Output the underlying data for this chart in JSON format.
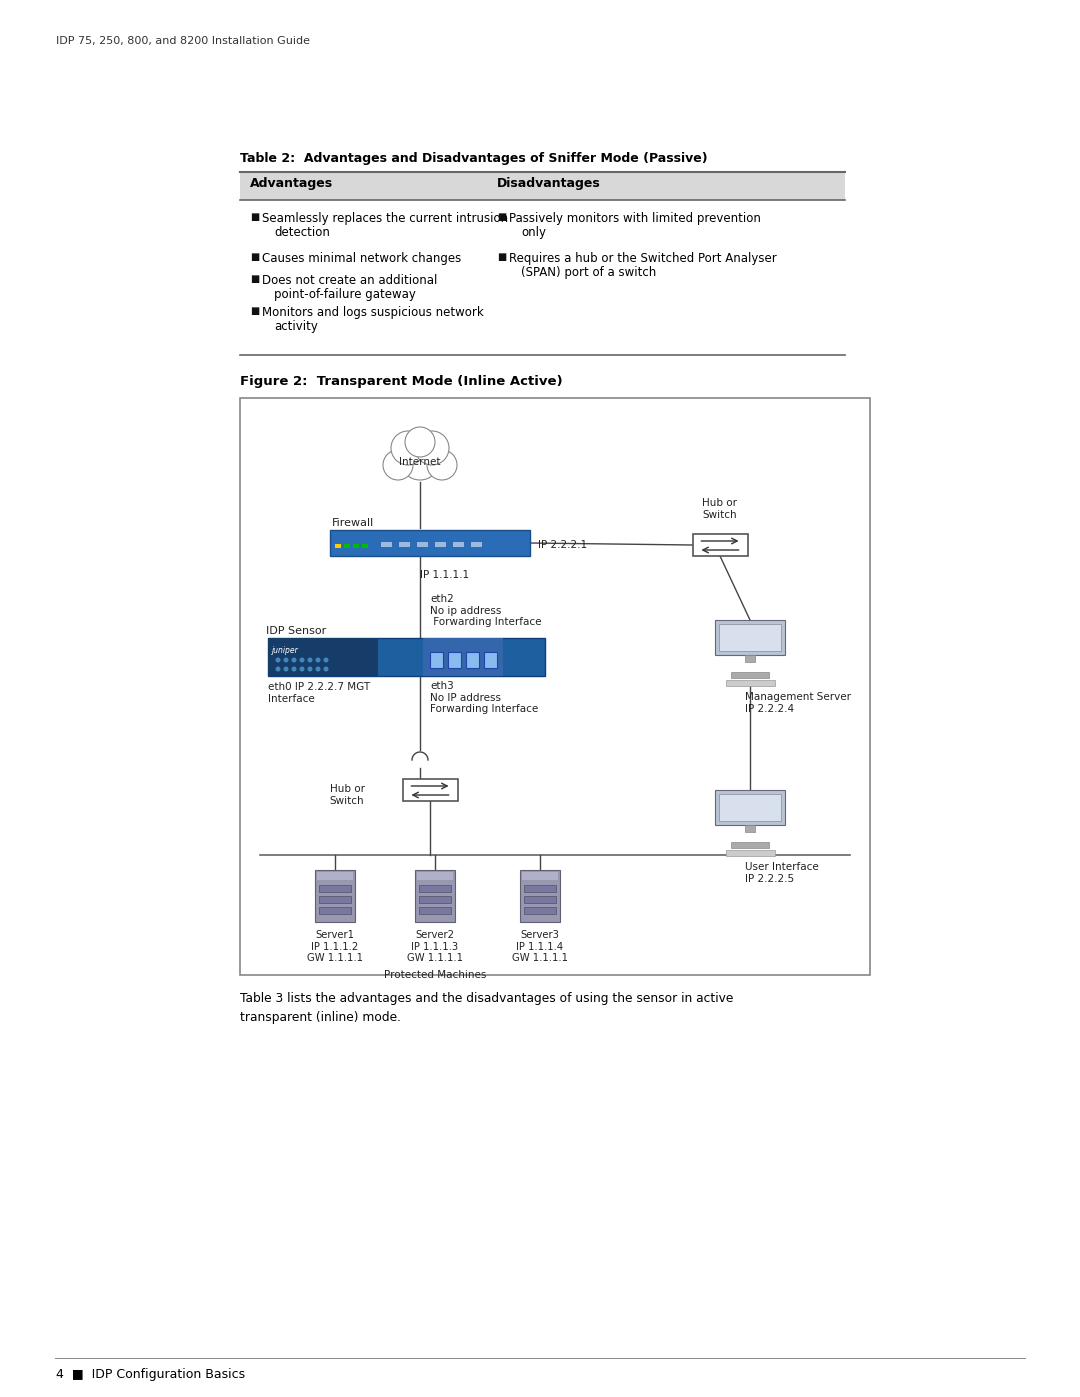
{
  "page_header": "IDP 75, 250, 800, and 8200 Installation Guide",
  "page_footer_num": "4",
  "page_footer_text": "IDP Configuration Basics",
  "table_title": "Table 2:  Advantages and Disadvantages of Sniffer Mode (Passive)",
  "col1_header": "Advantages",
  "col2_header": "Disadvantages",
  "advantages": [
    [
      "Seamlessly replaces the current intrusion",
      "detection"
    ],
    [
      "Causes minimal network changes"
    ],
    [
      "Does not create an additional",
      "point-of-failure gateway"
    ],
    [
      "Monitors and logs suspicious network",
      "activity"
    ]
  ],
  "disadvantages": [
    [
      "Passively monitors with limited prevention",
      "only"
    ],
    [
      "Requires a hub or the Switched Port Analyser",
      "(SPAN) port of a switch"
    ]
  ],
  "figure_title": "Figure 2:  Transparent Mode (Inline Active)",
  "table3_text": "Table 3 lists the advantages and the disadvantages of using the sensor in active\ntransparent (inline) mode.",
  "bg_color": "#ffffff",
  "table_header_bg": "#d8d8d8",
  "text_color": "#000000",
  "firewall_blue": "#2a6cb5",
  "idp_blue_dark": "#1a4a85",
  "idp_blue_light": "#4488cc"
}
